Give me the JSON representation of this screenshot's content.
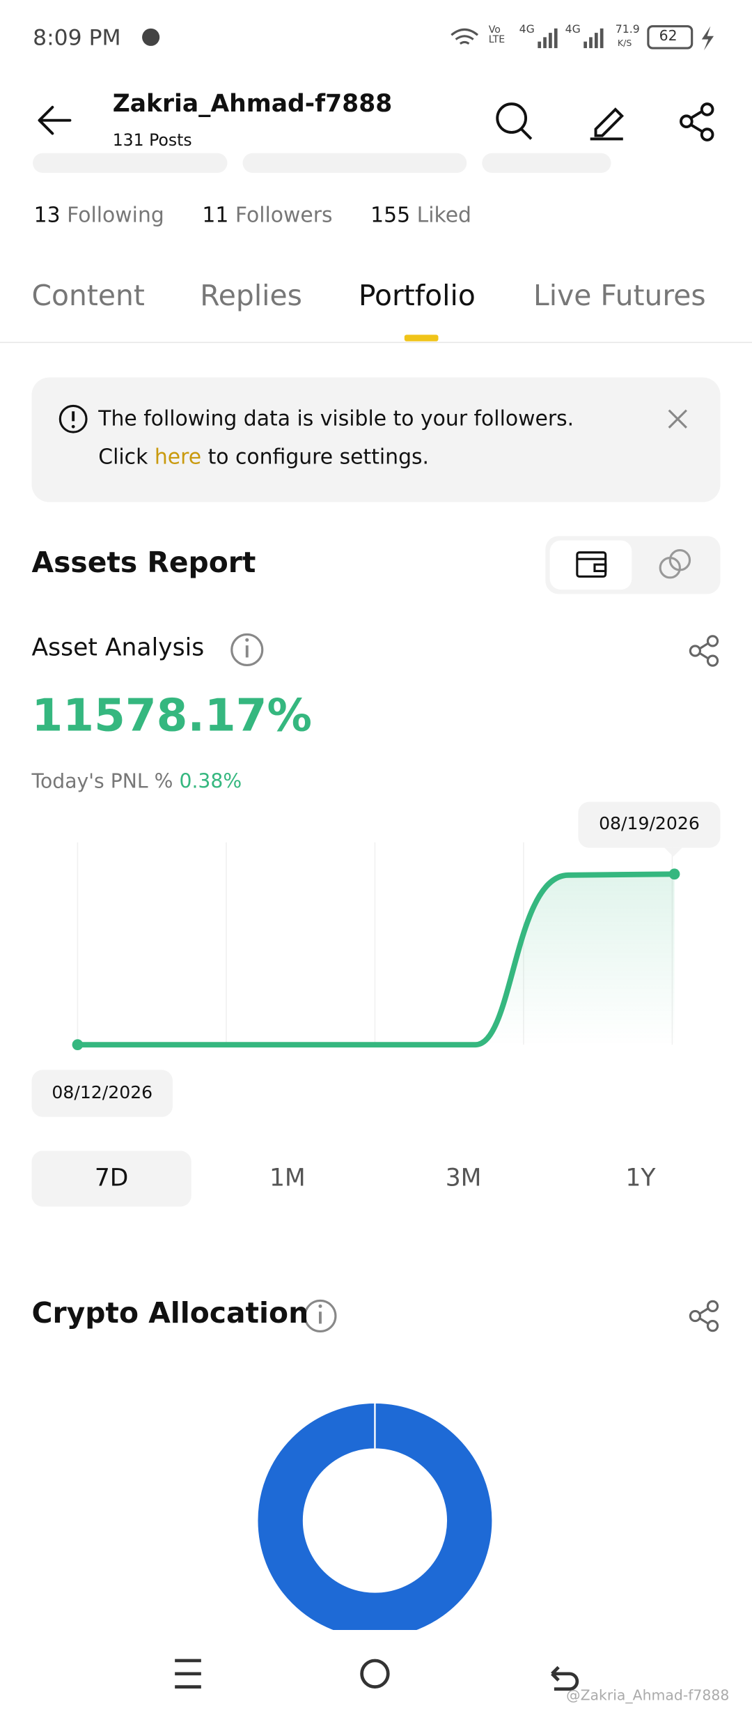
{
  "status_bar": {
    "time": "8:09 PM",
    "network": "Vo LTE",
    "signal_1": "4G",
    "signal_2": "4G",
    "speed": "71.9",
    "speed_unit": "K/S",
    "battery": "62"
  },
  "header": {
    "title": "Zakria_Ahmad-f7888",
    "posts": "131 Posts"
  },
  "stats": [
    {
      "count": "13",
      "label": "Following"
    },
    {
      "count": "11",
      "label": "Followers"
    },
    {
      "count": "155",
      "label": "Liked"
    }
  ],
  "tabs": [
    "Content",
    "Replies",
    "Portfolio",
    "Live Futures"
  ],
  "notice": {
    "line1": "The following data is visible to your followers.",
    "line2_before": "Click",
    "link": "here",
    "line2_after": "to configure settings."
  },
  "assets_report": {
    "title": "Assets Report"
  },
  "asset_analysis": {
    "title": "Asset Analysis",
    "value": "11578.17%",
    "pnl_label": "Today's PNL %",
    "pnl_value": "0.38%",
    "start_date": "08/12/2026",
    "end_date": "08/19/2026",
    "ranges": [
      "7D",
      "1M",
      "3M",
      "1Y"
    ]
  },
  "crypto_allocation": {
    "title": "Crypto Allocation"
  },
  "watermark": "@Zakria_Ahmad-f7888"
}
